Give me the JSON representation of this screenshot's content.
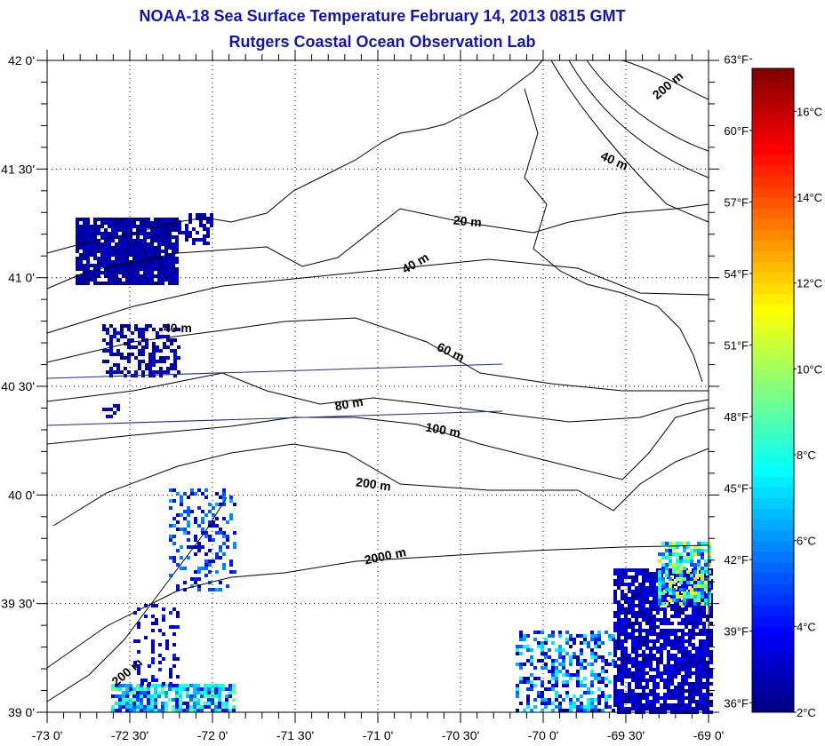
{
  "title": "NOAA-18 Sea Surface Temperature February 14, 2013 0815 GMT",
  "subtitle": "Rutgers Coastal Ocean Observation Lab",
  "map": {
    "lon_range": [
      -73,
      -69
    ],
    "lat_range": [
      39,
      42
    ],
    "lon_ticks": [
      "-73 0'",
      "-72 30'",
      "-72 0'",
      "-71 30'",
      "-71 0'",
      "-70 30'",
      "-70 0'",
      "-69 30'",
      "-69 0'"
    ],
    "lat_ticks": [
      "39 0'",
      "39 30'",
      "40 0'",
      "40 30'",
      "41 0'",
      "41 30'",
      "42 0'"
    ],
    "grid": "dotted",
    "contour_labels": [
      {
        "text": "200 m",
        "lon": -69.23,
        "lat": 41.87,
        "angle": -40
      },
      {
        "text": "40 m",
        "lon": -69.58,
        "lat": 41.52,
        "angle": 25
      },
      {
        "text": "20 m",
        "lon": -70.46,
        "lat": 41.24,
        "angle": 5
      },
      {
        "text": "40 m",
        "lon": -70.76,
        "lat": 41.05,
        "angle": -30
      },
      {
        "text": "40 m",
        "lon": -72.21,
        "lat": 40.75,
        "angle": 0
      },
      {
        "text": "60 m",
        "lon": -70.57,
        "lat": 40.64,
        "angle": 25
      },
      {
        "text": "80 m",
        "lon": -71.17,
        "lat": 40.4,
        "angle": -10
      },
      {
        "text": "100 m",
        "lon": -70.61,
        "lat": 40.28,
        "angle": 10
      },
      {
        "text": "200 m",
        "lon": -71.03,
        "lat": 40.03,
        "angle": 8
      },
      {
        "text": "2000 m",
        "lon": -70.95,
        "lat": 39.7,
        "angle": -12
      },
      {
        "text": "200 m",
        "lon": -72.5,
        "lat": 39.17,
        "angle": -40
      }
    ]
  },
  "colorbar": {
    "range_c": [
      2,
      17
    ],
    "celsius_ticks": [
      {
        "v": 2,
        "label": "2°C"
      },
      {
        "v": 4,
        "label": "4°C"
      },
      {
        "v": 6,
        "label": "6°C"
      },
      {
        "v": 8,
        "label": "8°C"
      },
      {
        "v": 10,
        "label": "10°C"
      },
      {
        "v": 12,
        "label": "12°C"
      },
      {
        "v": 14,
        "label": "14°C"
      },
      {
        "v": 16,
        "label": "16°C"
      }
    ],
    "fahrenheit_ticks": [
      {
        "v": 36,
        "label": "36°F"
      },
      {
        "v": 39,
        "label": "39°F"
      },
      {
        "v": 42,
        "label": "42°F"
      },
      {
        "v": 45,
        "label": "45°F"
      },
      {
        "v": 48,
        "label": "48°F"
      },
      {
        "v": 51,
        "label": "51°F"
      },
      {
        "v": 54,
        "label": "54°F"
      },
      {
        "v": 57,
        "label": "57°F"
      },
      {
        "v": 60,
        "label": "60°F"
      },
      {
        "v": 63,
        "label": "63°F"
      }
    ]
  },
  "colors": {
    "title": "#1414b4",
    "track_lines": "#1a2a9a",
    "contour": "#000000"
  }
}
